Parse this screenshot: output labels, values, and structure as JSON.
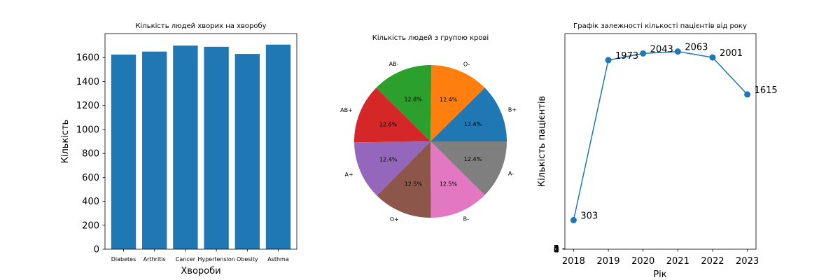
{
  "chart_data": [
    {
      "type": "bar",
      "title": "Кількість людей хворих на хворобу",
      "xlabel": "Хвороби",
      "ylabel": "Кількість",
      "categories": [
        "Diabetes",
        "Arthritis",
        "Cancer",
        "Hypertension",
        "Obesity",
        "Asthma"
      ],
      "values": [
        1625,
        1650,
        1700,
        1690,
        1630,
        1708
      ],
      "ylim": [
        0,
        1800
      ],
      "yticks": [
        "0",
        "200",
        "400",
        "600",
        "800",
        "1000",
        "1200",
        "1400",
        "1600"
      ],
      "color": "#1f77b4",
      "grid": false
    },
    {
      "type": "pie",
      "title": "Кількість людей з групою крові",
      "labels": [
        "B+",
        "O-",
        "AB-",
        "AB+",
        "A+",
        "O+",
        "B-",
        "A-"
      ],
      "percent_labels": [
        "12.4%",
        "12.4%",
        "12.8%",
        "12.6%",
        "12.4%",
        "12.5%",
        "12.5%",
        "12.4%"
      ],
      "values": [
        12.4,
        12.4,
        12.8,
        12.6,
        12.4,
        12.5,
        12.5,
        12.4
      ],
      "colors": [
        "#1f77b4",
        "#ff7f0e",
        "#2ca02c",
        "#d62728",
        "#9467bd",
        "#8c564b",
        "#e377c2",
        "#7f7f7f"
      ]
    },
    {
      "type": "line",
      "title": "Графік залежності кількості пацієнтів від року",
      "xlabel": "Рік",
      "ylabel": "Кількість пацієнтів",
      "x": [
        2018,
        2019,
        2020,
        2021,
        2022,
        2023
      ],
      "xticks": [
        "2018",
        "2019",
        "2020",
        "2021",
        "2022",
        "2023"
      ],
      "y": [
        303,
        1973,
        2043,
        2063,
        2001,
        1615
      ],
      "point_labels": [
        "303",
        "1973",
        "2043",
        "2063",
        "2001",
        "1615"
      ],
      "ylim": [
        0,
        2250
      ],
      "yticks_overlapping": [
        "0",
        "1",
        "2",
        "3",
        "4",
        "5"
      ],
      "color": "#1f77b4",
      "grid": false
    }
  ]
}
